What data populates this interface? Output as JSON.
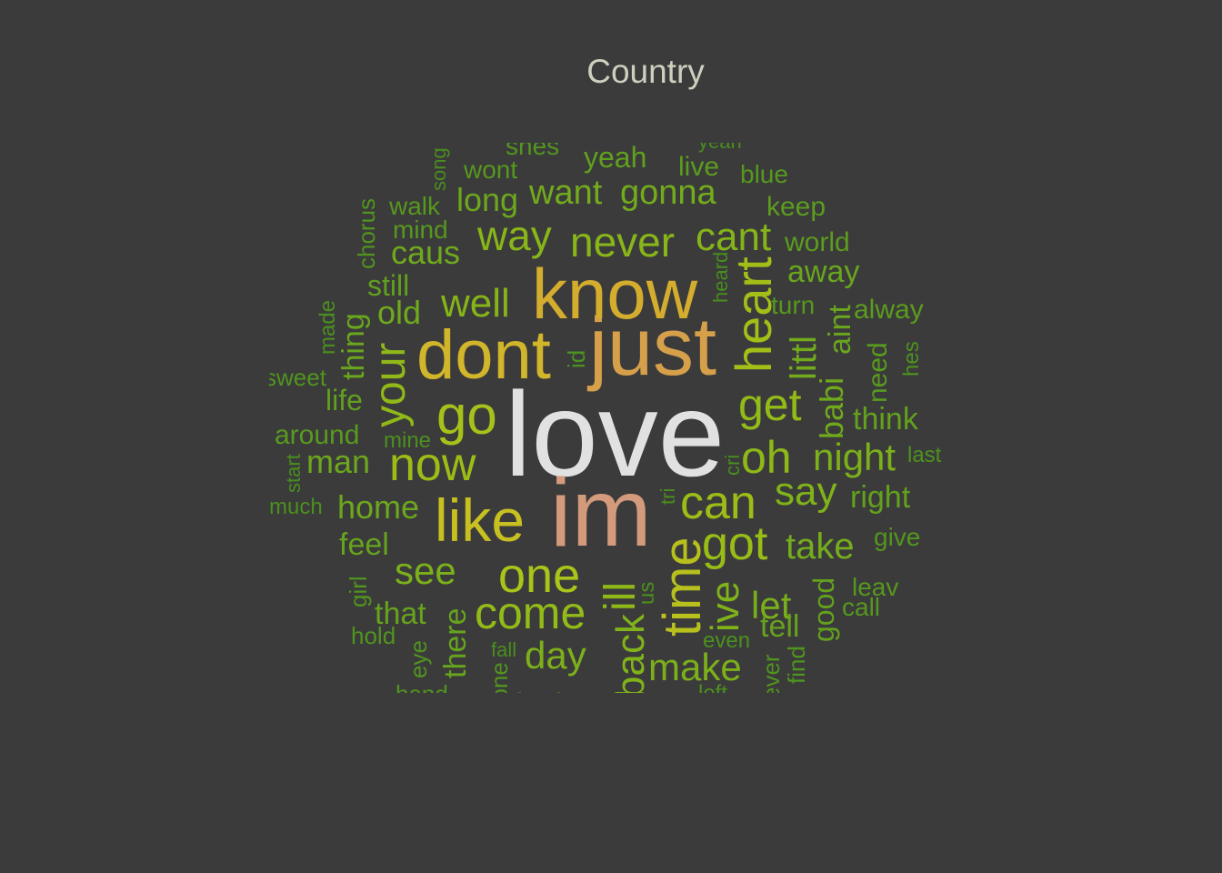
{
  "chart_data": {
    "type": "wordcloud",
    "title": "Country",
    "words": [
      {
        "text": "love",
        "size": 132,
        "color": "#e1e1e1",
        "rot": 0
      },
      {
        "text": "im",
        "size": 106,
        "color": "#d49a7c",
        "rot": 0
      },
      {
        "text": "just",
        "size": 90,
        "color": "#d6a04a",
        "rot": 0
      },
      {
        "text": "know",
        "size": 78,
        "color": "#d4ad2e",
        "rot": 0
      },
      {
        "text": "dont",
        "size": 76,
        "color": "#d1b52a",
        "rot": 0
      },
      {
        "text": "like",
        "size": 66,
        "color": "#c8c021",
        "rot": 0
      },
      {
        "text": "time",
        "size": 58,
        "color": "#b7c01c",
        "rot": -90
      },
      {
        "text": "go",
        "size": 60,
        "color": "#a7c11a",
        "rot": 0
      },
      {
        "text": "heart",
        "size": 56,
        "color": "#a2bf18",
        "rot": -90
      },
      {
        "text": "one",
        "size": 54,
        "color": "#aac51a",
        "rot": 0
      },
      {
        "text": "now",
        "size": 52,
        "color": "#9bbd16",
        "rot": 0
      },
      {
        "text": "can",
        "size": 52,
        "color": "#9bbd16",
        "rot": 0
      },
      {
        "text": "got",
        "size": 52,
        "color": "#98bd16",
        "rot": 0
      },
      {
        "text": "get",
        "size": 50,
        "color": "#93bb17",
        "rot": 0
      },
      {
        "text": "come",
        "size": 50,
        "color": "#93bb17",
        "rot": 0
      },
      {
        "text": "your",
        "size": 48,
        "color": "#8fb818",
        "rot": -90
      },
      {
        "text": "oh",
        "size": 50,
        "color": "#8db818",
        "rot": 0
      },
      {
        "text": "ill",
        "size": 48,
        "color": "#8db818",
        "rot": -90
      },
      {
        "text": "way",
        "size": 46,
        "color": "#88b619",
        "rot": 0
      },
      {
        "text": "never",
        "size": 46,
        "color": "#88b619",
        "rot": 0
      },
      {
        "text": "cant",
        "size": 44,
        "color": "#85b419",
        "rot": 0
      },
      {
        "text": "well",
        "size": 44,
        "color": "#85b419",
        "rot": 0
      },
      {
        "text": "back",
        "size": 44,
        "color": "#80b21a",
        "rot": -90
      },
      {
        "text": "say",
        "size": 44,
        "color": "#80b21a",
        "rot": 0
      },
      {
        "text": "ive",
        "size": 44,
        "color": "#80b21a",
        "rot": -90
      },
      {
        "text": "day",
        "size": 42,
        "color": "#7cb01b",
        "rot": 0
      },
      {
        "text": "make",
        "size": 42,
        "color": "#7cb01b",
        "rot": 0
      },
      {
        "text": "night",
        "size": 42,
        "color": "#7bb01b",
        "rot": 0
      },
      {
        "text": "see",
        "size": 42,
        "color": "#7bb01b",
        "rot": 0
      },
      {
        "text": "let",
        "size": 42,
        "color": "#79ae1b",
        "rot": 0
      },
      {
        "text": "take",
        "size": 40,
        "color": "#75ad1c",
        "rot": 0
      },
      {
        "text": "want",
        "size": 38,
        "color": "#72ab1c",
        "rot": 0
      },
      {
        "text": "gonna",
        "size": 38,
        "color": "#72ab1c",
        "rot": 0
      },
      {
        "text": "littl",
        "size": 40,
        "color": "#72ab1c",
        "rot": -90
      },
      {
        "text": "babi",
        "size": 36,
        "color": "#6fa91c",
        "rot": -90
      },
      {
        "text": "old",
        "size": 36,
        "color": "#6fa91c",
        "rot": 0
      },
      {
        "text": "caus",
        "size": 36,
        "color": "#6fa91c",
        "rot": 0
      },
      {
        "text": "home",
        "size": 36,
        "color": "#6ca71d",
        "rot": 0
      },
      {
        "text": "long",
        "size": 36,
        "color": "#6ca71d",
        "rot": 0
      },
      {
        "text": "man",
        "size": 36,
        "color": "#6ca71d",
        "rot": 0
      },
      {
        "text": "away",
        "size": 34,
        "color": "#69a51d",
        "rot": 0
      },
      {
        "text": "aint",
        "size": 34,
        "color": "#69a51d",
        "rot": -90
      },
      {
        "text": "thing",
        "size": 34,
        "color": "#69a51d",
        "rot": -90
      },
      {
        "text": "that",
        "size": 34,
        "color": "#66a31d",
        "rot": 0
      },
      {
        "text": "there",
        "size": 34,
        "color": "#66a31d",
        "rot": -90
      },
      {
        "text": "tell",
        "size": 34,
        "color": "#66a31d",
        "rot": 0
      },
      {
        "text": "good",
        "size": 32,
        "color": "#63a11d",
        "rot": -90
      },
      {
        "text": "feel",
        "size": 34,
        "color": "#66a31d",
        "rot": 0
      },
      {
        "text": "think",
        "size": 34,
        "color": "#63a11d",
        "rot": 0
      },
      {
        "text": "right",
        "size": 34,
        "color": "#63a11d",
        "rot": 0
      },
      {
        "text": "yeah",
        "size": 32,
        "color": "#60a01e",
        "rot": 0
      },
      {
        "text": "still",
        "size": 32,
        "color": "#60a01e",
        "rot": 0
      },
      {
        "text": "life",
        "size": 32,
        "color": "#60a01e",
        "rot": 0
      },
      {
        "text": "look",
        "size": 32,
        "color": "#5e9e1e",
        "rot": 0
      },
      {
        "text": "live",
        "size": 30,
        "color": "#5b9c1e",
        "rot": 0
      },
      {
        "text": "world",
        "size": 30,
        "color": "#5b9c1e",
        "rot": 0
      },
      {
        "text": "keep",
        "size": 30,
        "color": "#5b9c1e",
        "rot": 0
      },
      {
        "text": "alway",
        "size": 30,
        "color": "#5b9c1e",
        "rot": 0
      },
      {
        "text": "around",
        "size": 30,
        "color": "#589a1e",
        "rot": 0
      },
      {
        "text": "need",
        "size": 30,
        "color": "#589a1e",
        "rot": -90
      },
      {
        "text": "blue",
        "size": 28,
        "color": "#56981e",
        "rot": 0
      },
      {
        "text": "walk",
        "size": 28,
        "color": "#56981e",
        "rot": 0
      },
      {
        "text": "wont",
        "size": 28,
        "color": "#56981e",
        "rot": 0
      },
      {
        "text": "mind",
        "size": 28,
        "color": "#56981e",
        "rot": 0
      },
      {
        "text": "turn",
        "size": 28,
        "color": "#56981e",
        "rot": 0
      },
      {
        "text": "call",
        "size": 28,
        "color": "#56981e",
        "rot": 0
      },
      {
        "text": "leav",
        "size": 28,
        "color": "#56981e",
        "rot": 0
      },
      {
        "text": "give",
        "size": 28,
        "color": "#53961e",
        "rot": 0
      },
      {
        "text": "chorus",
        "size": 26,
        "color": "#50941e",
        "rot": -90
      },
      {
        "text": "eye",
        "size": 26,
        "color": "#50941e",
        "rot": -90
      },
      {
        "text": "shes",
        "size": 28,
        "color": "#53961e",
        "rot": 0
      },
      {
        "text": "girl",
        "size": 26,
        "color": "#50941e",
        "rot": -90
      },
      {
        "text": "hand",
        "size": 26,
        "color": "#50941e",
        "rot": 0
      },
      {
        "text": "sweet",
        "size": 26,
        "color": "#50941e",
        "rot": 0
      },
      {
        "text": "hold",
        "size": 26,
        "color": "#50941e",
        "rot": 0
      },
      {
        "text": "find",
        "size": 26,
        "color": "#50941e",
        "rot": -90
      },
      {
        "text": "ever",
        "size": 26,
        "color": "#50941e",
        "rot": -90
      },
      {
        "text": "hes",
        "size": 24,
        "color": "#4d921e",
        "rot": -90
      },
      {
        "text": "last",
        "size": 24,
        "color": "#4d921e",
        "rot": 0
      },
      {
        "text": "id",
        "size": 26,
        "color": "#4d921e",
        "rot": -90
      },
      {
        "text": "made",
        "size": 24,
        "color": "#4b901e",
        "rot": -90
      },
      {
        "text": "much",
        "size": 24,
        "color": "#4b901e",
        "rot": 0
      },
      {
        "text": "mine",
        "size": 24,
        "color": "#4b901e",
        "rot": 0
      },
      {
        "text": "even",
        "size": 24,
        "color": "#4b901e",
        "rot": 0
      },
      {
        "text": "us",
        "size": 24,
        "color": "#4b901e",
        "rot": -90
      },
      {
        "text": "left",
        "size": 24,
        "color": "#4b901e",
        "rot": 0
      },
      {
        "text": "fall",
        "size": 22,
        "color": "#488e1e",
        "rot": 0
      },
      {
        "text": "heard",
        "size": 22,
        "color": "#488e1e",
        "rot": -90
      },
      {
        "text": "start",
        "size": 22,
        "color": "#488e1e",
        "rot": -90
      },
      {
        "text": "song",
        "size": 22,
        "color": "#488e1e",
        "rot": -90
      },
      {
        "text": "cri",
        "size": 22,
        "color": "#488e1e",
        "rot": -90
      },
      {
        "text": "tri",
        "size": 22,
        "color": "#488e1e",
        "rot": -90
      },
      {
        "text": "gone",
        "size": 26,
        "color": "#50941e",
        "rot": -90
      },
      {
        "text": "yeah",
        "size": 22,
        "color": "#488e1e",
        "rot": 0
      }
    ]
  }
}
